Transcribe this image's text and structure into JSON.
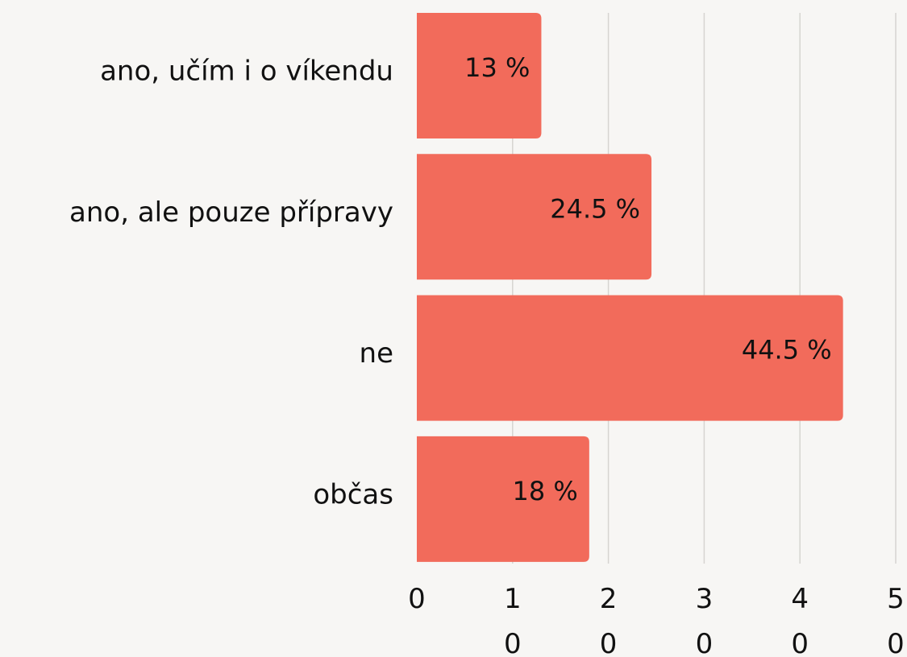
{
  "chart_data": {
    "type": "barh",
    "categories": [
      "ano, učím i o víkendu",
      "ano, ale pouze přípravy",
      "ne",
      "občas"
    ],
    "values": [
      13,
      24.5,
      44.5,
      18
    ],
    "value_labels": [
      "13 %",
      "24.5 %",
      "44.5 %",
      "18 %"
    ],
    "color": "#f26b5b",
    "xlim": [
      0,
      50
    ],
    "xticks": [
      0,
      10,
      20,
      30,
      40,
      50
    ],
    "grid": true
  }
}
